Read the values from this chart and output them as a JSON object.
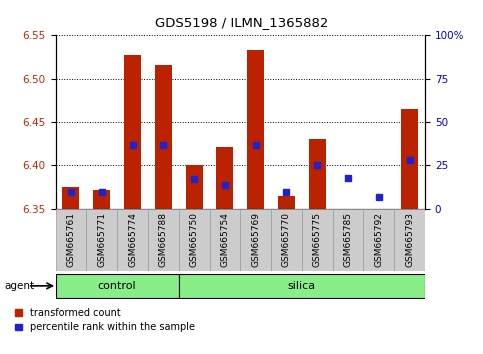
{
  "title": "GDS5198 / ILMN_1365882",
  "samples": [
    "GSM665761",
    "GSM665771",
    "GSM665774",
    "GSM665788",
    "GSM665750",
    "GSM665754",
    "GSM665769",
    "GSM665770",
    "GSM665775",
    "GSM665785",
    "GSM665792",
    "GSM665793"
  ],
  "transformed_count": [
    6.375,
    6.372,
    6.527,
    6.516,
    6.4,
    6.421,
    6.533,
    6.365,
    6.43,
    6.35,
    6.344,
    6.465
  ],
  "percentile_rank": [
    10,
    10,
    37,
    37,
    17,
    14,
    37,
    10,
    25,
    18,
    7,
    28
  ],
  "n_control": 4,
  "ylim_left": [
    6.35,
    6.55
  ],
  "ylim_right": [
    0,
    100
  ],
  "yticks_left": [
    6.35,
    6.4,
    6.45,
    6.5,
    6.55
  ],
  "yticks_right": [
    0,
    25,
    50,
    75,
    100
  ],
  "ytick_labels_right": [
    "0",
    "25",
    "50",
    "75",
    "100%"
  ],
  "bar_color": "#bb2200",
  "percentile_color": "#2222cc",
  "bar_width": 0.55,
  "group_color": "#88ee88",
  "agent_label": "agent",
  "legend_items": [
    "transformed count",
    "percentile rank within the sample"
  ],
  "tick_label_color_left": "#cc2200",
  "tick_label_color_right": "#0000cc",
  "cell_bg": "#cccccc"
}
